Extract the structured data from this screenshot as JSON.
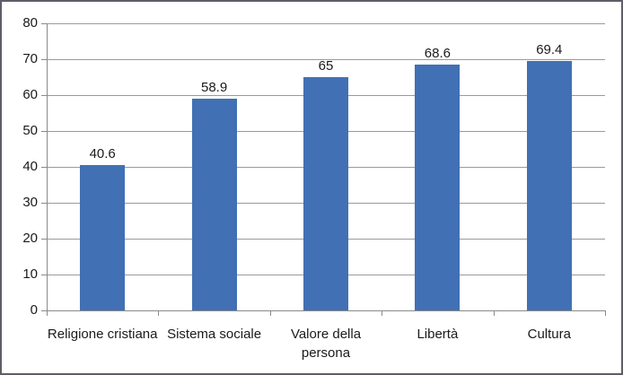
{
  "chart_data": {
    "type": "bar",
    "title": "",
    "xlabel": "",
    "ylabel": "",
    "categories": [
      "Religione cristiana",
      "Sistema sociale",
      "Valore della persona",
      "Libertà",
      "Cultura"
    ],
    "values": [
      40.6,
      58.9,
      65,
      68.6,
      69.4
    ],
    "value_labels": [
      "40.6",
      "58.9",
      "65",
      "68.6",
      "69.4"
    ],
    "yticks": [
      0,
      10,
      20,
      30,
      40,
      50,
      60,
      70,
      80
    ],
    "ylim": [
      0,
      80
    ],
    "grid": true,
    "legend_position": "none",
    "colors": {
      "bar_fill": "#4170b4",
      "gridline": "#9a9a9a",
      "axis": "#8a8a8a",
      "text": "#1a1a1a",
      "border": "#5d5e66",
      "background": "#ffffff"
    }
  }
}
